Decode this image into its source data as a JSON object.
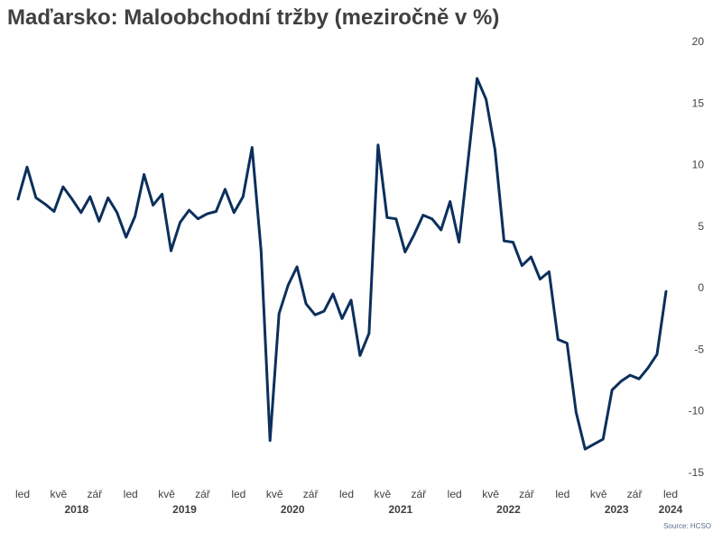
{
  "chart_data": {
    "type": "line",
    "title": "Maďarsko: Maloobchodní tržby (meziročně v %)",
    "source": "Source: HCSO",
    "xlabel": "",
    "ylabel": "",
    "ylim": [
      -15,
      20
    ],
    "y_ticks": [
      "20",
      "15",
      "10",
      "5",
      "0",
      "-5",
      "-10",
      "-15"
    ],
    "y_axis_position": "right",
    "grid": false,
    "line_color": "#0c2f5c",
    "x_ticks": [
      {
        "label": "led",
        "index": 0
      },
      {
        "label": "kvě",
        "index": 4
      },
      {
        "label": "zář",
        "index": 8
      },
      {
        "label": "led",
        "index": 12
      },
      {
        "label": "kvě",
        "index": 16
      },
      {
        "label": "zář",
        "index": 20
      },
      {
        "label": "led",
        "index": 24
      },
      {
        "label": "kvě",
        "index": 28
      },
      {
        "label": "zář",
        "index": 32
      },
      {
        "label": "led",
        "index": 36
      },
      {
        "label": "kvě",
        "index": 40
      },
      {
        "label": "zář",
        "index": 44
      },
      {
        "label": "led",
        "index": 48
      },
      {
        "label": "kvě",
        "index": 52
      },
      {
        "label": "zář",
        "index": 56
      },
      {
        "label": "led",
        "index": 60
      },
      {
        "label": "kvě",
        "index": 64
      },
      {
        "label": "zář",
        "index": 68
      },
      {
        "label": "led",
        "index": 72
      }
    ],
    "years": [
      {
        "label": "2018",
        "index": 6
      },
      {
        "label": "2019",
        "index": 18
      },
      {
        "label": "2020",
        "index": 30
      },
      {
        "label": "2021",
        "index": 42
      },
      {
        "label": "2022",
        "index": 54
      },
      {
        "label": "2023",
        "index": 66
      },
      {
        "label": "2024",
        "index": 72
      }
    ],
    "series": [
      {
        "values": [
          7.2,
          9.8,
          7.3,
          6.8,
          6.2,
          8.2,
          7.2,
          6.1,
          7.4,
          5.4,
          7.3,
          6.1,
          4.1,
          5.8,
          9.2,
          6.7,
          7.6,
          3.0,
          5.3,
          6.3,
          5.6,
          6.0,
          6.2,
          8.0,
          6.1,
          7.4,
          11.4,
          3.0,
          -12.4,
          -2.1,
          0.2,
          1.7,
          -1.3,
          -2.2,
          -1.9,
          -0.5,
          -2.5,
          -1.0,
          -5.5,
          -3.7,
          11.6,
          5.7,
          5.6,
          2.9,
          4.3,
          5.9,
          5.6,
          4.7,
          7.0,
          3.7,
          10.3,
          17.0,
          15.3,
          11.2,
          3.8,
          3.7,
          1.8,
          2.5,
          0.7,
          1.3,
          -4.2,
          -4.5,
          -10.1,
          -13.1,
          -12.7,
          -12.3,
          -8.3,
          -7.6,
          -7.1,
          -7.4,
          -6.5,
          -5.4,
          -0.3
        ]
      }
    ]
  }
}
